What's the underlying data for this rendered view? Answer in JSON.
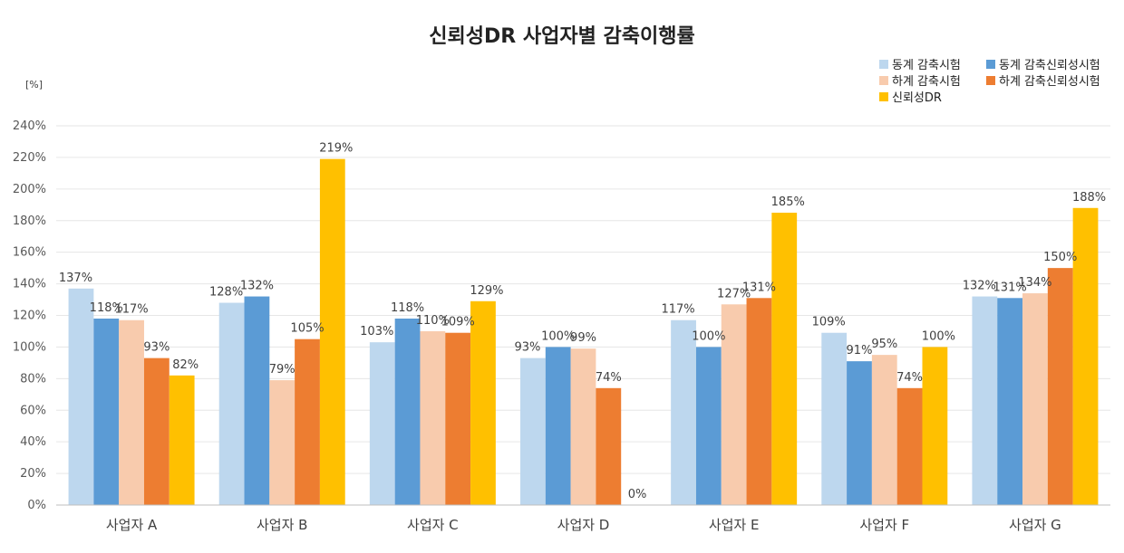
{
  "chart_data": {
    "type": "bar",
    "title": "신뢰성DR 사업자별 감축이행률",
    "unit_label": "[%]",
    "xlabel": "",
    "ylabel": "",
    "ylim": [
      0,
      240
    ],
    "y_ticks": [
      0,
      20,
      40,
      60,
      80,
      100,
      120,
      140,
      160,
      180,
      200,
      220,
      240
    ],
    "y_tick_labels": [
      "0%",
      "20%",
      "40%",
      "60%",
      "80%",
      "100%",
      "120%",
      "140%",
      "160%",
      "180%",
      "200%",
      "220%",
      "240%"
    ],
    "grid": true,
    "legend_position": "top-right",
    "categories": [
      "사업자 A",
      "사업자 B",
      "사업자 C",
      "사업자 D",
      "사업자 E",
      "사업자 F",
      "사업자 G"
    ],
    "series": [
      {
        "name": "동계 감축시험",
        "color": "#bdd7ee",
        "values": [
          137,
          128,
          103,
          93,
          117,
          109,
          132
        ],
        "labels": [
          "137%",
          "128%",
          "103%",
          "93%",
          "117%",
          "109%",
          "132%"
        ]
      },
      {
        "name": "동계 감축신뢰성시험",
        "color": "#5b9bd5",
        "values": [
          118,
          132,
          118,
          100,
          100,
          91,
          131
        ],
        "labels": [
          "118%",
          "132%",
          "118%",
          "100%",
          "100%",
          "91%",
          "131%"
        ]
      },
      {
        "name": "하계 감축시험",
        "color": "#f8cbad",
        "values": [
          117,
          79,
          110,
          99,
          127,
          95,
          134
        ],
        "labels": [
          "117%",
          "79%",
          "110%",
          "99%",
          "127%",
          "95%",
          "134%"
        ]
      },
      {
        "name": "하계 감축신뢰성시험",
        "color": "#ed7d31",
        "values": [
          93,
          105,
          109,
          74,
          131,
          74,
          150
        ],
        "labels": [
          "93%",
          "105%",
          "109%",
          "74%",
          "131%",
          "74%",
          "150%"
        ]
      },
      {
        "name": "신뢰성DR",
        "color": "#ffc000",
        "values": [
          82,
          219,
          129,
          0,
          185,
          100,
          188
        ],
        "labels": [
          "82%",
          "219%",
          "129%",
          "0%",
          "185%",
          "100%",
          "188%"
        ]
      }
    ]
  }
}
